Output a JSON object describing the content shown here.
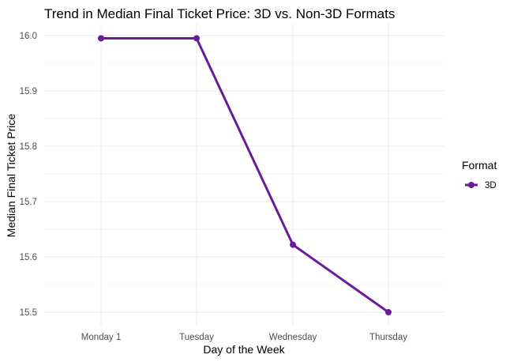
{
  "chart_data": {
    "type": "line",
    "title": "Trend in Median Final Ticket Price: 3D vs. Non-3D Formats",
    "xlabel": "Day of the Week",
    "ylabel": "Median Final Ticket Price",
    "categories": [
      "Monday 1",
      "Tuesday",
      "Wednesday",
      "Thursday"
    ],
    "series": [
      {
        "name": "3D",
        "values": [
          15.995,
          15.995,
          15.622,
          15.5
        ],
        "color": "#6a1b9a"
      }
    ],
    "ylim": [
      15.5,
      16.0
    ],
    "yticks": [
      "15.5",
      "15.6",
      "15.7",
      "15.8",
      "15.9",
      "16.0"
    ],
    "grid": true,
    "legend": {
      "title": "Format",
      "placement": "right"
    }
  }
}
